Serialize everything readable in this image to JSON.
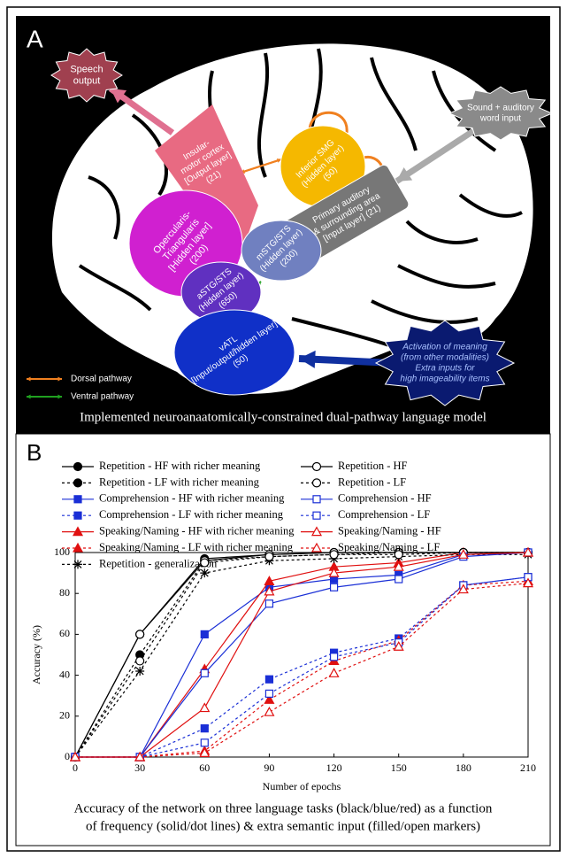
{
  "panel_a": {
    "label": "A",
    "nodes": [
      {
        "lines": [
          "Speech",
          "output"
        ]
      },
      {
        "lines": [
          "Insular-",
          "motor cortex",
          "[Output layer]",
          "(21)"
        ]
      },
      {
        "lines": [
          "Inferior SMG",
          "(Hidden layer)",
          "(50)"
        ]
      },
      {
        "lines": [
          "Sound + auditory",
          "word input"
        ]
      },
      {
        "lines": [
          "Primary auditory",
          "& surrounding area",
          "[Input layer] (21)"
        ]
      },
      {
        "lines": [
          "Opercularis-",
          "Triangularis",
          "[Hidden layer]",
          "(200)"
        ]
      },
      {
        "lines": [
          "mSTG/STS",
          "(Hidden layer)",
          "(200)"
        ]
      },
      {
        "lines": [
          "aSTG/STS",
          "(Hidden layer)",
          "(650)"
        ]
      },
      {
        "lines": [
          "vATL",
          "[Input/output/hidden layer]",
          "(50)"
        ]
      },
      {
        "lines": [
          "Activation of meaning",
          "(from other modalities)",
          "Extra inputs for",
          "high imageability items"
        ]
      }
    ],
    "legend": [
      "Dorsal pathway",
      "Ventral pathway"
    ],
    "caption": "Implemented neuroanaatomically-constrained dual-pathway language model"
  },
  "panel_b": {
    "label": "B",
    "caption": [
      "Accuracy of the network on three language tasks (black/blue/red) as a function",
      "of frequency (solid/dot lines) & extra semantic input (filled/open markers)"
    ]
  },
  "chart_data": {
    "type": "line",
    "x_label": "Number of epochs",
    "y_label": "Accuracy (%)",
    "x": [
      0,
      30,
      60,
      90,
      120,
      150,
      180,
      210
    ],
    "xlim": [
      0,
      210
    ],
    "xticks": [
      0,
      30,
      60,
      90,
      120,
      150,
      180,
      210
    ],
    "ylim": [
      0,
      100
    ],
    "yticks": [
      0,
      20,
      40,
      60,
      80,
      100
    ],
    "series": [
      {
        "name": "Repetition - HF with richer meaning",
        "color": "#000000",
        "dash": "solid",
        "marker": "circle",
        "filled": true,
        "values": [
          0,
          60,
          97,
          99,
          100,
          100,
          100,
          100
        ]
      },
      {
        "name": "Repetition - LF with richer meaning",
        "color": "#000000",
        "dash": "dotted",
        "marker": "circle",
        "filled": true,
        "values": [
          0,
          50,
          96,
          98,
          99,
          100,
          100,
          100
        ]
      },
      {
        "name": "Comprehension - HF with richer meaning",
        "color": "#1a2fd6",
        "dash": "solid",
        "marker": "square",
        "filled": true,
        "values": [
          0,
          0,
          60,
          83,
          87,
          89,
          99,
          100
        ]
      },
      {
        "name": "Comprehension - LF with richer meaning",
        "color": "#1a2fd6",
        "dash": "dotted",
        "marker": "square",
        "filled": true,
        "values": [
          0,
          0,
          14,
          38,
          51,
          58,
          84,
          88
        ]
      },
      {
        "name": "Speaking/Naming - HF with richer meaning",
        "color": "#e01010",
        "dash": "solid",
        "marker": "triangle",
        "filled": true,
        "values": [
          0,
          0,
          43,
          86,
          93,
          95,
          100,
          100
        ]
      },
      {
        "name": "Speaking/Naming - LF with richer meaning",
        "color": "#e01010",
        "dash": "dotted",
        "marker": "triangle",
        "filled": true,
        "values": [
          0,
          0,
          3,
          28,
          47,
          57,
          84,
          86
        ]
      },
      {
        "name": "Repetition - generalization",
        "color": "#000000",
        "dash": "dotted",
        "marker": "star",
        "filled": true,
        "values": [
          0,
          42,
          90,
          96,
          97,
          98,
          99,
          99
        ]
      },
      {
        "name": "Repetition - HF",
        "color": "#000000",
        "dash": "solid",
        "marker": "circle",
        "filled": false,
        "values": [
          0,
          60,
          96,
          99,
          100,
          100,
          100,
          100
        ]
      },
      {
        "name": "Repetition - LF",
        "color": "#000000",
        "dash": "dotted",
        "marker": "circle",
        "filled": false,
        "values": [
          0,
          47,
          95,
          98,
          99,
          99,
          100,
          100
        ]
      },
      {
        "name": "Comprehension - HF",
        "color": "#1a2fd6",
        "dash": "solid",
        "marker": "square",
        "filled": false,
        "values": [
          0,
          0,
          41,
          75,
          83,
          87,
          98,
          100
        ]
      },
      {
        "name": "Comprehension - LF",
        "color": "#1a2fd6",
        "dash": "dotted",
        "marker": "square",
        "filled": false,
        "values": [
          0,
          0,
          7,
          31,
          49,
          56,
          84,
          88
        ]
      },
      {
        "name": "Speaking/Naming - HF",
        "color": "#e01010",
        "dash": "solid",
        "marker": "triangle",
        "filled": false,
        "values": [
          0,
          0,
          24,
          81,
          90,
          93,
          99,
          100
        ]
      },
      {
        "name": "Speaking/Naming - LF",
        "color": "#e01010",
        "dash": "dotted",
        "marker": "triangle",
        "filled": false,
        "values": [
          0,
          0,
          2,
          22,
          41,
          54,
          82,
          85
        ]
      }
    ]
  }
}
